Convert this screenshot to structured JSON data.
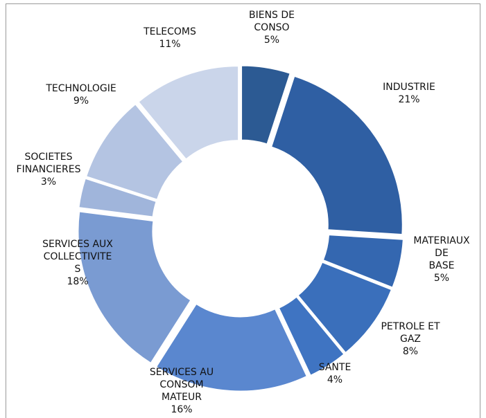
{
  "chart_data": {
    "type": "donut",
    "categories": [
      "BIENS DE\nCONSO",
      "INDUSTRIE",
      "MATERIAUX DE\nBASE",
      "PETROLE ET\nGAZ",
      "SANTE",
      "SERVICES AU\nCONSOM\nMATEUR",
      "SERVICES AUX\nCOLLECTIVITE\nS",
      "SOCIETES\nFINANCIERES",
      "TECHNOLOGIE",
      "TELECOMS"
    ],
    "values": [
      5,
      21,
      5,
      8,
      4,
      16,
      18,
      3,
      9,
      11
    ],
    "value_labels": [
      "5%",
      "21%",
      "5%",
      "8%",
      "4%",
      "16%",
      "18%",
      "3%",
      "9%",
      "11%"
    ],
    "colors": [
      "#2c5a93",
      "#2f5fa3",
      "#3467b0",
      "#3a6fbb",
      "#3f74c2",
      "#5a87cf",
      "#7a9bd2",
      "#a0b5db",
      "#b4c4e2",
      "#cad5ea"
    ]
  }
}
